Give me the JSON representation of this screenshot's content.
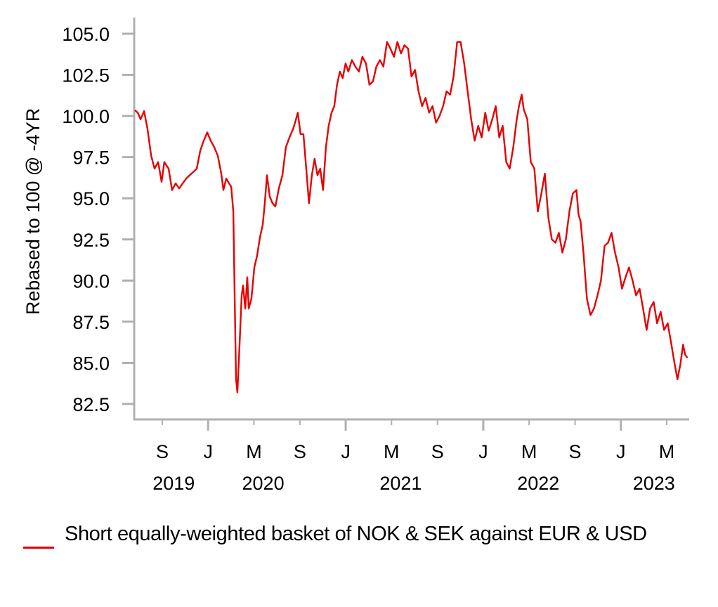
{
  "chart_data": {
    "type": "line",
    "title": "",
    "xlabel": "",
    "ylabel": "Rebased to 100 @ -4YR",
    "ylim": [
      81.6,
      106.5
    ],
    "xlim": [
      2019.47,
      2023.48
    ],
    "grid": false,
    "line_color": "#e60000",
    "axis_color": "#b0b0b0",
    "y_ticks": [
      {
        "value": 105.0,
        "label": "105.0"
      },
      {
        "value": 102.5,
        "label": "102.5"
      },
      {
        "value": 100.0,
        "label": "100.0"
      },
      {
        "value": 97.5,
        "label": "97.5"
      },
      {
        "value": 95.0,
        "label": "95.0"
      },
      {
        "value": 92.5,
        "label": "92.5"
      },
      {
        "value": 90.0,
        "label": "90.0"
      },
      {
        "value": 87.5,
        "label": "87.5"
      },
      {
        "value": 85.0,
        "label": "85.0"
      },
      {
        "value": 82.5,
        "label": "82.5"
      }
    ],
    "x_ticks": [
      {
        "value": 2019.667,
        "label": "S",
        "major": false
      },
      {
        "value": 2020.0,
        "label": "J",
        "major": true
      },
      {
        "value": 2020.333,
        "label": "M",
        "major": false
      },
      {
        "value": 2020.667,
        "label": "S",
        "major": false
      },
      {
        "value": 2021.0,
        "label": "J",
        "major": true
      },
      {
        "value": 2021.333,
        "label": "M",
        "major": false
      },
      {
        "value": 2021.667,
        "label": "S",
        "major": false
      },
      {
        "value": 2022.0,
        "label": "J",
        "major": true
      },
      {
        "value": 2022.333,
        "label": "M",
        "major": false
      },
      {
        "value": 2022.667,
        "label": "S",
        "major": false
      },
      {
        "value": 2023.0,
        "label": "J",
        "major": true
      },
      {
        "value": 2023.333,
        "label": "M",
        "major": false
      }
    ],
    "year_labels": [
      {
        "value": 2019.75,
        "label": "2019"
      },
      {
        "value": 2020.4,
        "label": "2020"
      },
      {
        "value": 2021.4,
        "label": "2021"
      },
      {
        "value": 2022.4,
        "label": "2022"
      },
      {
        "value": 2023.24,
        "label": "2023"
      }
    ],
    "series": [
      {
        "name": "Short equally-weighted basket of NOK & SEK against EUR & USD",
        "x": [
          2019.468,
          2019.489,
          2019.509,
          2019.535,
          2019.56,
          2019.586,
          2019.611,
          2019.637,
          2019.662,
          2019.682,
          2019.713,
          2019.738,
          2019.764,
          2019.79,
          2019.815,
          2019.841,
          2019.866,
          2019.892,
          2019.917,
          2019.943,
          2019.968,
          2019.994,
          2020.019,
          2020.045,
          2020.07,
          2020.096,
          2020.111,
          2020.132,
          2020.152,
          2020.168,
          2020.183,
          2020.193,
          2020.203,
          2020.213,
          2020.229,
          2020.244,
          2020.254,
          2020.27,
          2020.285,
          2020.295,
          2020.315,
          2020.336,
          2020.356,
          2020.376,
          2020.397,
          2020.412,
          2020.428,
          2020.448,
          2020.468,
          2020.489,
          2020.514,
          2020.54,
          2020.565,
          2020.591,
          2020.617,
          2020.632,
          2020.652,
          2020.672,
          2020.693,
          2020.713,
          2020.733,
          2020.754,
          2020.774,
          2020.795,
          2020.815,
          2020.835,
          2020.856,
          2020.876,
          2020.897,
          2020.917,
          2020.937,
          2020.958,
          2020.978,
          2020.999,
          2021.019,
          2021.045,
          2021.07,
          2021.096,
          2021.121,
          2021.147,
          2021.172,
          2021.198,
          2021.223,
          2021.249,
          2021.274,
          2021.3,
          2021.325,
          2021.351,
          2021.376,
          2021.402,
          2021.427,
          2021.453,
          2021.478,
          2021.504,
          2021.529,
          2021.555,
          2021.58,
          2021.606,
          2021.631,
          2021.657,
          2021.682,
          2021.708,
          2021.733,
          2021.759,
          2021.784,
          2021.81,
          2021.835,
          2021.861,
          2021.886,
          2021.912,
          2021.937,
          2021.963,
          2021.988,
          2022.014,
          2022.039,
          2022.065,
          2022.09,
          2022.116,
          2022.141,
          2022.167,
          2022.192,
          2022.218,
          2022.243,
          2022.259,
          2022.279,
          2022.294,
          2022.32,
          2022.345,
          2022.371,
          2022.396,
          2022.422,
          2022.447,
          2022.473,
          2022.498,
          2022.524,
          2022.549,
          2022.575,
          2022.6,
          2022.626,
          2022.651,
          2022.677,
          2022.692,
          2022.707,
          2022.728,
          2022.753,
          2022.779,
          2022.804,
          2022.83,
          2022.855,
          2022.881,
          2022.906,
          2022.932,
          2022.957,
          2022.983,
          2023.008,
          2023.034,
          2023.059,
          2023.085,
          2023.11,
          2023.136,
          2023.161,
          2023.187,
          2023.212,
          2023.238,
          2023.263,
          2023.289,
          2023.314,
          2023.34,
          2023.365,
          2023.391,
          2023.411,
          2023.432,
          2023.452,
          2023.467,
          2023.483
        ],
        "y": [
          100.35,
          100.2,
          99.8,
          100.3,
          99.2,
          97.6,
          96.8,
          97.2,
          96.0,
          97.2,
          96.8,
          95.5,
          95.9,
          95.6,
          95.9,
          96.2,
          96.4,
          96.6,
          96.8,
          97.9,
          98.5,
          99.0,
          98.5,
          98.1,
          97.6,
          96.5,
          95.5,
          96.2,
          95.9,
          95.7,
          94.2,
          89.1,
          84.0,
          83.2,
          86.2,
          89.1,
          89.7,
          88.3,
          90.2,
          88.3,
          88.9,
          90.8,
          91.5,
          92.6,
          93.4,
          94.7,
          96.4,
          95.1,
          94.7,
          94.5,
          95.6,
          96.4,
          98.1,
          98.7,
          99.2,
          99.6,
          100.2,
          98.9,
          98.9,
          96.8,
          94.7,
          96.4,
          97.4,
          96.4,
          96.8,
          95.5,
          98.1,
          99.4,
          100.2,
          100.6,
          101.9,
          102.7,
          102.3,
          103.2,
          102.7,
          103.4,
          103.0,
          102.7,
          103.6,
          103.2,
          101.9,
          102.1,
          103.0,
          103.4,
          103.0,
          104.5,
          104.1,
          103.6,
          104.5,
          103.8,
          104.3,
          104.1,
          102.4,
          102.8,
          101.5,
          100.6,
          101.1,
          100.2,
          100.6,
          99.6,
          100.0,
          100.6,
          101.5,
          101.3,
          102.4,
          104.5,
          104.5,
          103.2,
          101.5,
          99.8,
          98.5,
          99.4,
          98.7,
          100.2,
          99.1,
          99.8,
          100.6,
          98.7,
          99.4,
          97.2,
          96.8,
          98.1,
          99.8,
          100.6,
          101.3,
          100.4,
          99.8,
          97.2,
          96.8,
          94.2,
          95.3,
          96.5,
          93.8,
          92.5,
          92.3,
          92.9,
          91.7,
          92.5,
          94.2,
          95.3,
          95.5,
          94.0,
          93.6,
          91.7,
          88.9,
          87.9,
          88.3,
          89.1,
          90.0,
          92.1,
          92.3,
          92.9,
          91.7,
          90.8,
          89.5,
          90.2,
          90.8,
          90.0,
          89.1,
          89.5,
          88.3,
          87.0,
          88.3,
          88.7,
          87.4,
          88.1,
          87.0,
          87.4,
          86.2,
          84.9,
          84.0,
          84.9,
          86.1,
          85.5,
          85.3
        ]
      }
    ]
  },
  "legend": {
    "items": [
      {
        "label": "Short equally-weighted basket of NOK & SEK against EUR & USD",
        "color": "#e60000"
      }
    ]
  }
}
